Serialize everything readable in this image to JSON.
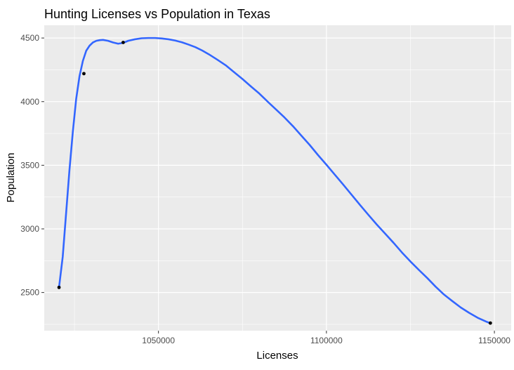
{
  "chart_data": {
    "type": "line",
    "title": "Hunting Licenses vs Population in Texas",
    "xlabel": "Licenses",
    "ylabel": "Population",
    "xlim": [
      1016000,
      1155000
    ],
    "ylim": [
      2200000,
      4600000
    ],
    "x_ticks": [
      1050000,
      1100000,
      1150000
    ],
    "x_tick_labels": [
      "1050000",
      "1100000",
      "1150000"
    ],
    "y_ticks": [
      2500,
      3000,
      3500,
      4000,
      4500
    ],
    "y_tick_labels": [
      "2500",
      "3000",
      "3500",
      "4000",
      "4500"
    ],
    "y_scale_note": "",
    "grid": true,
    "panel_background": "#EBEBEB",
    "series": [
      {
        "kind": "points",
        "color": "#000000",
        "x": [
          1020400,
          1027800,
          1039500,
          1148800
        ],
        "y": [
          2540,
          4220,
          4465,
          2260
        ]
      },
      {
        "kind": "smooth",
        "color": "#3366FF",
        "x": [
          1020400,
          1021500,
          1022500,
          1023500,
          1024500,
          1025500,
          1026500,
          1027500,
          1028500,
          1029500,
          1030500,
          1031500,
          1032500,
          1033500,
          1035000,
          1036500,
          1038000,
          1039500,
          1041000,
          1043000,
          1045000,
          1047000,
          1049000,
          1051000,
          1053000,
          1055000,
          1057000,
          1059000,
          1061000,
          1063000,
          1065000,
          1067500,
          1070000,
          1072500,
          1075000,
          1077500,
          1080000,
          1082500,
          1085000,
          1087500,
          1090000,
          1092500,
          1095000,
          1097500,
          1100000,
          1102500,
          1105000,
          1107500,
          1110000,
          1112500,
          1115000,
          1117500,
          1120000,
          1122500,
          1125000,
          1127500,
          1130000,
          1132500,
          1135000,
          1137500,
          1140000,
          1142500,
          1145000,
          1147500,
          1148800
        ],
        "y": [
          2540,
          2780,
          3120,
          3460,
          3760,
          4020,
          4200,
          4320,
          4400,
          4440,
          4465,
          4478,
          4483,
          4485,
          4478,
          4465,
          4455,
          4462,
          4478,
          4490,
          4498,
          4500,
          4500,
          4496,
          4490,
          4480,
          4466,
          4448,
          4428,
          4402,
          4372,
          4330,
          4286,
          4232,
          4178,
          4120,
          4064,
          4000,
          3938,
          3876,
          3808,
          3734,
          3660,
          3580,
          3504,
          3426,
          3348,
          3268,
          3188,
          3110,
          3034,
          2962,
          2890,
          2814,
          2744,
          2678,
          2614,
          2546,
          2484,
          2432,
          2382,
          2340,
          2302,
          2272,
          2258
        ]
      }
    ]
  }
}
